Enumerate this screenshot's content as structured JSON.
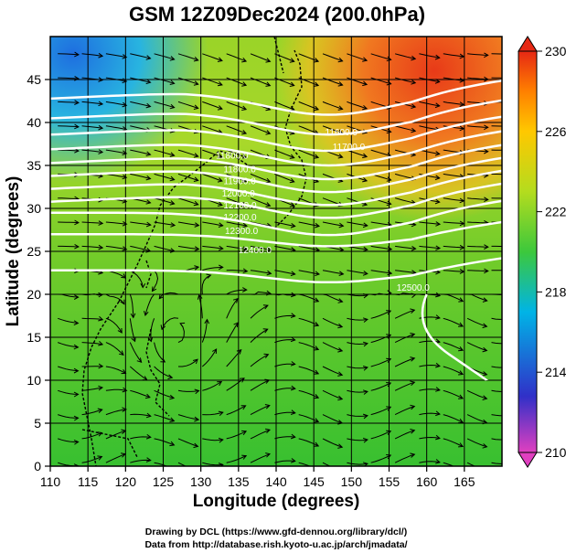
{
  "title": "GSM 12Z09Dec2024 (200.0hPa)",
  "x_axis": {
    "label": "Longitude (degrees)",
    "ticks": [
      110,
      115,
      120,
      125,
      130,
      135,
      140,
      145,
      150,
      155,
      160,
      165
    ],
    "range": [
      110,
      170
    ]
  },
  "y_axis": {
    "label": "Latitude  (degrees)",
    "ticks": [
      0,
      5,
      10,
      15,
      20,
      25,
      30,
      35,
      40,
      45
    ],
    "range": [
      0,
      50
    ]
  },
  "colorbar": {
    "ticks": [
      210,
      214,
      218,
      222,
      226,
      230
    ],
    "range": [
      210,
      230
    ],
    "colors": [
      "#e040c0",
      "#3030c8",
      "#00b4e6",
      "#3cc83c",
      "#b4dc1e",
      "#ffc800",
      "#ff8000",
      "#e62814"
    ]
  },
  "contour_labels": [
    "11600.0",
    "11800.0",
    "11700.0",
    "11800.0",
    "11900.0",
    "12000.0",
    "12100.0",
    "12200.0",
    "12300.0",
    "12400.0",
    "12500.0"
  ],
  "credits": {
    "line1": "Drawing by DCL (https://www.gfd-dennou.org/library/dcl/)",
    "line2": "Data from http://database.rish.kyoto-u.ac.jp/arch/jmadata/"
  }
}
